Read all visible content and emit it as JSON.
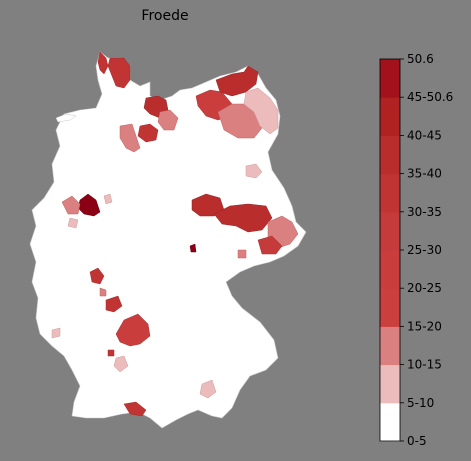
{
  "title": "Froede",
  "legend": {
    "labels": [
      "0-5",
      "5-10",
      "10-15",
      "15-20",
      "20-25",
      "25-30",
      "30-35",
      "35-40",
      "40-45",
      "45-50.6",
      "50.6"
    ],
    "bins": [
      {
        "label": "0-5",
        "color": "#ffffff"
      },
      {
        "label": "5-10",
        "color": "#ecbcbc"
      },
      {
        "label": "10-15",
        "color": "#db8080"
      },
      {
        "label": "15-20",
        "color": "#cb3f3f"
      },
      {
        "label": "20-25",
        "color": "#c93d3d"
      },
      {
        "label": "25-30",
        "color": "#c53a3a"
      },
      {
        "label": "30-35",
        "color": "#c03434"
      },
      {
        "label": "35-40",
        "color": "#b92d2d"
      },
      {
        "label": "40-45",
        "color": "#b02222"
      },
      {
        "label": "45-50.6",
        "color": "#a3111c"
      }
    ]
  },
  "colors": {
    "background": "#808080",
    "land": "#ffffff",
    "border": "#c8c8c8",
    "max": "#8b0014"
  }
}
